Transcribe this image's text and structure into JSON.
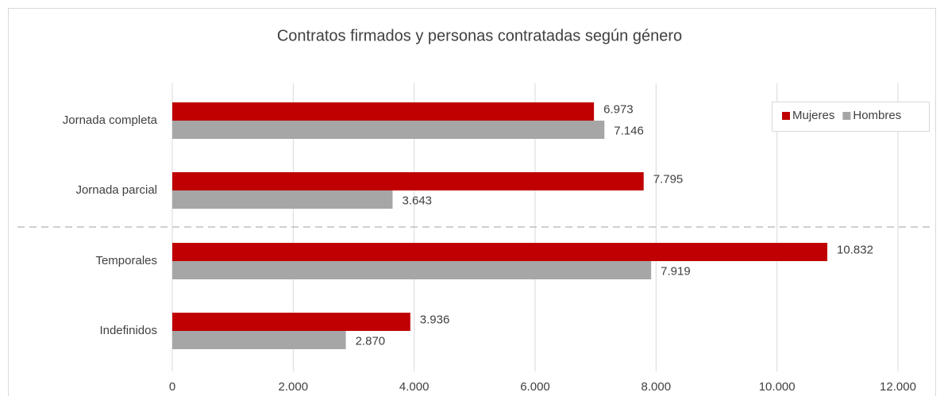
{
  "chart_data": {
    "type": "bar",
    "orientation": "horizontal",
    "title": "Contratos firmados y personas contratadas según género",
    "categories": [
      "Jornada completa",
      "Jornada parcial",
      "Temporales",
      "Indefinidos"
    ],
    "series": [
      {
        "name": "Mujeres",
        "color": "#c00000",
        "values": [
          6973,
          7795,
          10832,
          3936
        ],
        "value_labels": [
          "6.973",
          "7.795",
          "10.832",
          "3.936"
        ]
      },
      {
        "name": "Hombres",
        "color": "#a6a6a6",
        "values": [
          7146,
          3643,
          7919,
          2870
        ],
        "value_labels": [
          "7.146",
          "3.643",
          "7.919",
          "2.870"
        ]
      }
    ],
    "xlim": [
      0,
      12000
    ],
    "xticks": [
      0,
      {
        "value": 2000,
        "label": "2.000"
      },
      {
        "value": 4000,
        "label": "4.000"
      },
      {
        "value": 6000,
        "label": "6.000"
      },
      {
        "value": 8000,
        "label": "8.000"
      },
      {
        "value": 10000,
        "label": "10.000"
      },
      {
        "value": 12000,
        "label": "12.000"
      }
    ],
    "grid": true,
    "legend": "upper right"
  }
}
